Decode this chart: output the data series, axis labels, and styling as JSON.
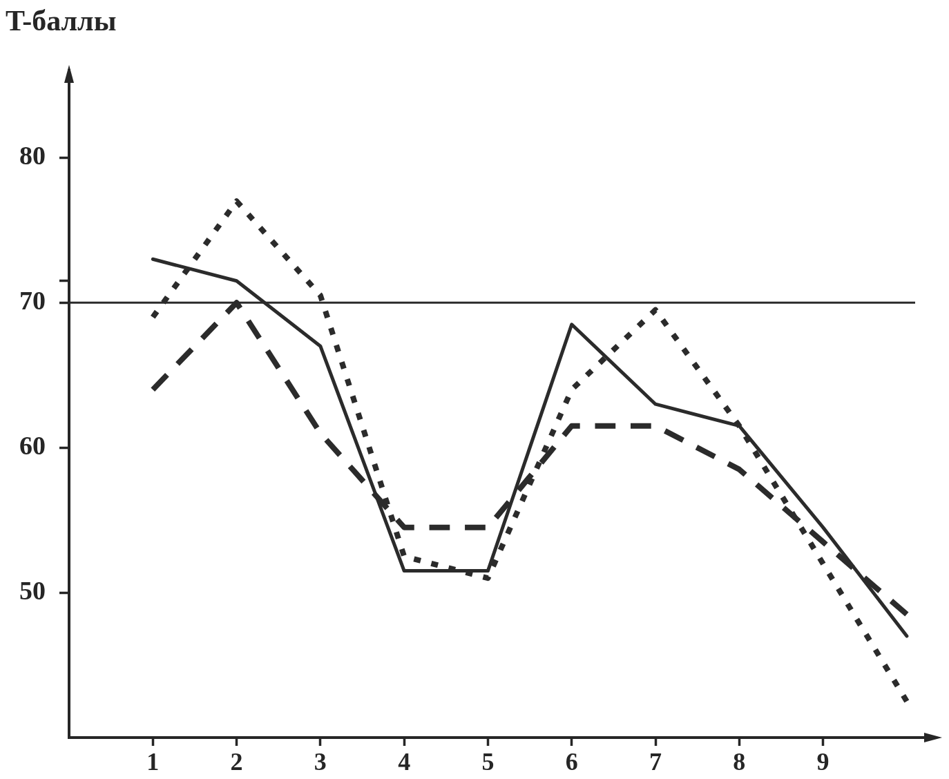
{
  "chart_data": {
    "type": "line",
    "ylabel": "T-баллы",
    "x": [
      1,
      2,
      3,
      4,
      5,
      6,
      7,
      8,
      9,
      10
    ],
    "xlim": [
      0,
      10.1
    ],
    "xticks": [
      1,
      2,
      3,
      4,
      5,
      6,
      7,
      8,
      9
    ],
    "ylim": [
      40,
      86
    ],
    "yticks": [
      80,
      {
        "value": 71.5,
        "label": null
      },
      70,
      60,
      50
    ],
    "series": [
      {
        "color": "#2b2b2b",
        "line_style": "solid",
        "values": [
          73,
          71.5,
          67,
          51.5,
          51.5,
          68.5,
          63,
          61.5,
          54.5,
          47
        ]
      },
      {
        "color": "#2b2b2b",
        "line_style": "dotted",
        "values": [
          69,
          77,
          70.5,
          52.5,
          51,
          64,
          69.5,
          61.5,
          52,
          42.5
        ]
      },
      {
        "color": "#2b2b2b",
        "line_style": "dashed",
        "values": [
          64,
          70,
          61,
          54.5,
          54.5,
          61.5,
          61.5,
          58.5,
          53.5,
          48.5
        ]
      }
    ],
    "ref_lines": [
      {
        "axis": "y",
        "value": 70,
        "color": "#2b2b2b",
        "line_style": "solid"
      }
    ]
  }
}
